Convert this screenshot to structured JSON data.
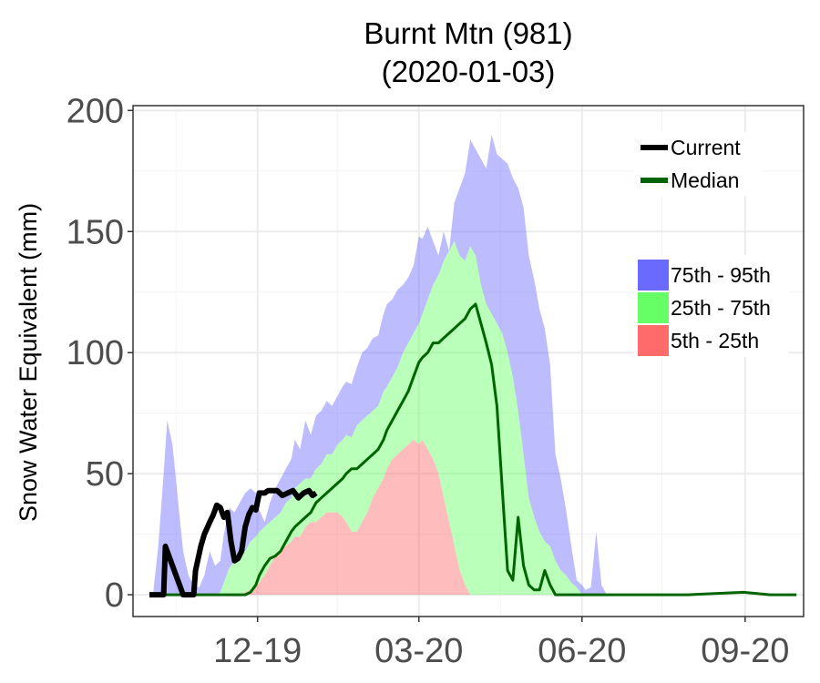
{
  "chart_data": {
    "type": "area",
    "title_line1": "Burnt Mtn (981)",
    "title_line2": "(2020-01-03)",
    "xlabel": "",
    "ylabel": "Snow Water Equivalent (mm)",
    "ylim": [
      -9,
      202
    ],
    "xlim": [
      "2019-10-01",
      "2020-09-30"
    ],
    "grid": true,
    "y_ticks": [
      0,
      50,
      100,
      150,
      200
    ],
    "x_ticks": [
      {
        "label": "12-19",
        "date": "2019-12-01"
      },
      {
        "label": "03-20",
        "date": "2020-03-01"
      },
      {
        "label": "06-20",
        "date": "2020-06-01"
      },
      {
        "label": "09-20",
        "date": "2020-09-01"
      }
    ],
    "legend_lines": [
      {
        "name": "Current",
        "color": "#000000"
      },
      {
        "name": "Median",
        "color": "#006400"
      }
    ],
    "legend_bands": [
      {
        "name": "75th - 95th",
        "color": "#6a6aff"
      },
      {
        "name": "25th - 75th",
        "color": "#66ff66"
      },
      {
        "name": "5th - 25th",
        "color": "#ff6a6a"
      }
    ],
    "legend_position": "top-right",
    "x": [
      "2019-10-01",
      "2019-10-03",
      "2019-10-06",
      "2019-10-09",
      "2019-10-11",
      "2019-10-14",
      "2019-10-17",
      "2019-10-20",
      "2019-10-23",
      "2019-10-26",
      "2019-10-29",
      "2019-11-01",
      "2019-11-04",
      "2019-11-07",
      "2019-11-10",
      "2019-11-12",
      "2019-11-15",
      "2019-11-18",
      "2019-11-21",
      "2019-11-24",
      "2019-11-27",
      "2019-11-30",
      "2019-12-02",
      "2019-12-05",
      "2019-12-08",
      "2019-12-11",
      "2019-12-14",
      "2019-12-17",
      "2019-12-20",
      "2019-12-22",
      "2019-12-25",
      "2019-12-28",
      "2019-12-31",
      "2020-01-03",
      "2020-01-06",
      "2020-01-09",
      "2020-01-12",
      "2020-01-15",
      "2020-01-18",
      "2020-01-20",
      "2020-01-23",
      "2020-01-26",
      "2020-01-29",
      "2020-02-01",
      "2020-02-04",
      "2020-02-07",
      "2020-02-10",
      "2020-02-12",
      "2020-02-15",
      "2020-02-18",
      "2020-02-21",
      "2020-02-24",
      "2020-02-27",
      "2020-03-01",
      "2020-03-03",
      "2020-03-06",
      "2020-03-09",
      "2020-03-12",
      "2020-03-15",
      "2020-03-18",
      "2020-03-21",
      "2020-03-24",
      "2020-03-27",
      "2020-03-30",
      "2020-04-02",
      "2020-04-05",
      "2020-04-08",
      "2020-04-11",
      "2020-04-14",
      "2020-04-17",
      "2020-04-20",
      "2020-04-23",
      "2020-04-26",
      "2020-04-29",
      "2020-05-02",
      "2020-05-05",
      "2020-05-08",
      "2020-05-11",
      "2020-05-14",
      "2020-05-17",
      "2020-05-20",
      "2020-05-23",
      "2020-05-26",
      "2020-05-29",
      "2020-06-01",
      "2020-06-03",
      "2020-06-06",
      "2020-06-09",
      "2020-06-12",
      "2020-06-15",
      "2020-06-30",
      "2020-07-31",
      "2020-08-31",
      "2020-09-15",
      "2020-09-30"
    ],
    "series": [
      {
        "name": "95th",
        "values": [
          0,
          0,
          20,
          50,
          72,
          62,
          40,
          18,
          8,
          4,
          3,
          8,
          18,
          12,
          14,
          25,
          36,
          34,
          38,
          42,
          44,
          42,
          35,
          30,
          38,
          44,
          48,
          52,
          56,
          64,
          60,
          72,
          66,
          74,
          76,
          80,
          78,
          82,
          86,
          88,
          87,
          94,
          100,
          102,
          106,
          107,
          116,
          120,
          122,
          126,
          128,
          131,
          136,
          148,
          147,
          152,
          146,
          140,
          150,
          140,
          162,
          168,
          174,
          188,
          184,
          180,
          176,
          190,
          182,
          180,
          178,
          172,
          168,
          160,
          140,
          130,
          118,
          110,
          95,
          58,
          48,
          35,
          20,
          6,
          4,
          2,
          3,
          26,
          4,
          0,
          0,
          0,
          0,
          0,
          0
        ]
      },
      {
        "name": "75th",
        "values": [
          0,
          0,
          0,
          0,
          0,
          0,
          0,
          0,
          0,
          0,
          0,
          0,
          0,
          0,
          1,
          5,
          11,
          14,
          16,
          18,
          22,
          24,
          26,
          28,
          30,
          32,
          34,
          38,
          40,
          44,
          46,
          48,
          48,
          52,
          54,
          58,
          58,
          62,
          64,
          66,
          65,
          70,
          72,
          74,
          76,
          78,
          84,
          86,
          90,
          94,
          100,
          104,
          108,
          112,
          116,
          122,
          128,
          132,
          138,
          142,
          146,
          140,
          138,
          144,
          140,
          128,
          120,
          116,
          112,
          108,
          100,
          90,
          76,
          58,
          40,
          32,
          26,
          22,
          20,
          14,
          10,
          8,
          5,
          3,
          0,
          0,
          0,
          0,
          0,
          0,
          0,
          0,
          0,
          0,
          0
        ]
      },
      {
        "name": "25th",
        "values": [
          0,
          0,
          0,
          0,
          0,
          0,
          0,
          0,
          0,
          0,
          0,
          0,
          0,
          0,
          0,
          0,
          0,
          0,
          0,
          1,
          2,
          3,
          5,
          8,
          12,
          16,
          18,
          20,
          22,
          24,
          24,
          28,
          30,
          30,
          32,
          34,
          34,
          34,
          32,
          30,
          26,
          26,
          30,
          34,
          40,
          44,
          48,
          52,
          56,
          58,
          60,
          62,
          64,
          62,
          64,
          60,
          56,
          50,
          40,
          30,
          20,
          10,
          4,
          0,
          0,
          0,
          0,
          0,
          0,
          0,
          0,
          0,
          0,
          0,
          0,
          0,
          0,
          0,
          0,
          0,
          0,
          0,
          0,
          0,
          0,
          0,
          0,
          0,
          0,
          0,
          0,
          0,
          0,
          0,
          0
        ]
      },
      {
        "name": "5th",
        "values": [
          0,
          0,
          0,
          0,
          0,
          0,
          0,
          0,
          0,
          0,
          0,
          0,
          0,
          0,
          0,
          0,
          0,
          0,
          0,
          0,
          0,
          0,
          0,
          0,
          0,
          0,
          0,
          0,
          0,
          0,
          0,
          0,
          0,
          0,
          0,
          0,
          0,
          0,
          0,
          0,
          0,
          0,
          0,
          0,
          0,
          0,
          0,
          0,
          0,
          0,
          0,
          0,
          0,
          0,
          0,
          0,
          0,
          0,
          0,
          0,
          0,
          0,
          0,
          0,
          0,
          0,
          0,
          0,
          0,
          0,
          0,
          0,
          0,
          0,
          0,
          0,
          0,
          0,
          0,
          0,
          0,
          0,
          0,
          0,
          0,
          0,
          0,
          0,
          0,
          0,
          0,
          0,
          0,
          0,
          0
        ]
      },
      {
        "name": "Median",
        "values": [
          0,
          0,
          0,
          0,
          0,
          0,
          0,
          0,
          0,
          0,
          0,
          0,
          0,
          0,
          0,
          0,
          0,
          0,
          0,
          0,
          1,
          4,
          8,
          12,
          15,
          16,
          18,
          22,
          26,
          28,
          30,
          32,
          34,
          38,
          40,
          42,
          44,
          46,
          48,
          50,
          52,
          52,
          54,
          56,
          58,
          60,
          64,
          68,
          72,
          76,
          80,
          84,
          90,
          96,
          98,
          100,
          104,
          104,
          106,
          108,
          110,
          112,
          114,
          118,
          120,
          112,
          104,
          95,
          78,
          44,
          10,
          6,
          32,
          12,
          4,
          2,
          2,
          10,
          4,
          0,
          0,
          0,
          0,
          0,
          0,
          0,
          0,
          0,
          0,
          0,
          0,
          0,
          1,
          0,
          0
        ]
      },
      {
        "name": "Current",
        "x": [
          "2019-10-01",
          "2019-10-06",
          "2019-10-09",
          "2019-10-10",
          "2019-10-12",
          "2019-10-14",
          "2019-10-16",
          "2019-10-18",
          "2019-10-20",
          "2019-10-24",
          "2019-10-26",
          "2019-10-27",
          "2019-10-30",
          "2019-11-01",
          "2019-11-04",
          "2019-11-06",
          "2019-11-08",
          "2019-11-10",
          "2019-11-12",
          "2019-11-14",
          "2019-11-16",
          "2019-11-18",
          "2019-11-20",
          "2019-11-22",
          "2019-11-24",
          "2019-11-26",
          "2019-11-28",
          "2019-11-30",
          "2019-12-02",
          "2019-12-05",
          "2019-12-07",
          "2019-12-09",
          "2019-12-12",
          "2019-12-15",
          "2019-12-18",
          "2019-12-21",
          "2019-12-24",
          "2019-12-27",
          "2019-12-30",
          "2020-01-01",
          "2020-01-03"
        ],
        "values": [
          0,
          0,
          0,
          20,
          16,
          12,
          8,
          4,
          0,
          0,
          0,
          10,
          20,
          25,
          30,
          33,
          37,
          36,
          32,
          34,
          22,
          14,
          15,
          18,
          28,
          33,
          36,
          35,
          42,
          42,
          43,
          43,
          43,
          41,
          42,
          43,
          40,
          42,
          43,
          41,
          42
        ]
      }
    ]
  }
}
